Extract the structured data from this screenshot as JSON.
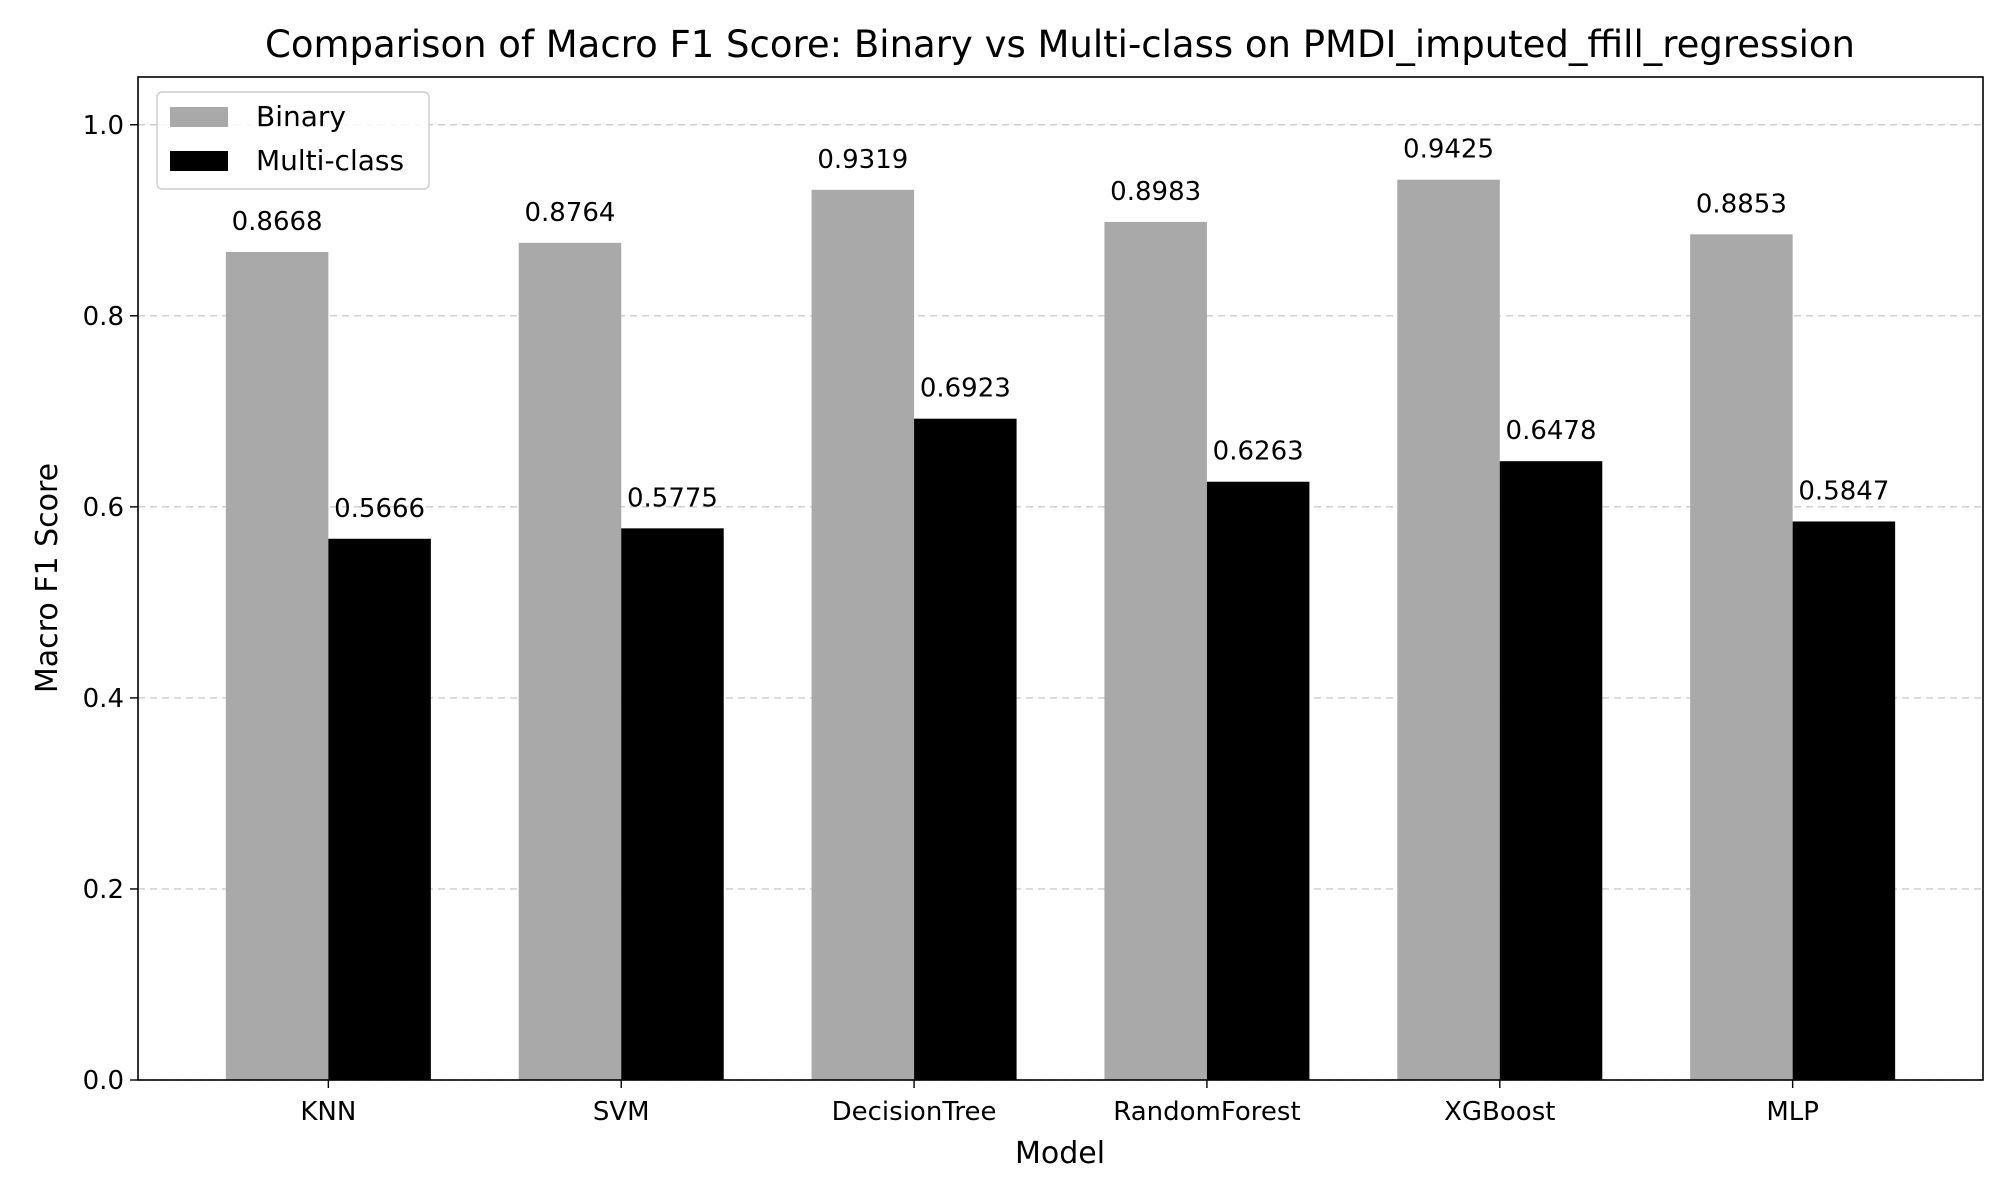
{
  "chart_data": {
    "type": "bar",
    "title": "Comparison of Macro F1 Score: Binary vs Multi-class on PMDI_imputed_ffill_regression",
    "xlabel": "Model",
    "ylabel": "Macro F1 Score",
    "categories": [
      "KNN",
      "SVM",
      "DecisionTree",
      "RandomForest",
      "XGBoost",
      "MLP"
    ],
    "series": [
      {
        "name": "Binary",
        "color": "#a9a9a9",
        "values": [
          0.8668,
          0.8764,
          0.9319,
          0.8983,
          0.9425,
          0.8853
        ]
      },
      {
        "name": "Multi-class",
        "color": "#000000",
        "values": [
          0.5666,
          0.5775,
          0.6923,
          0.6263,
          0.6478,
          0.5847
        ]
      }
    ],
    "ylim": [
      0,
      1.05
    ],
    "yticks": [
      "0.0",
      "0.2",
      "0.4",
      "0.6",
      "0.8",
      "1.0"
    ],
    "grid": "horizontal dashed",
    "legend_position": "top-left"
  }
}
